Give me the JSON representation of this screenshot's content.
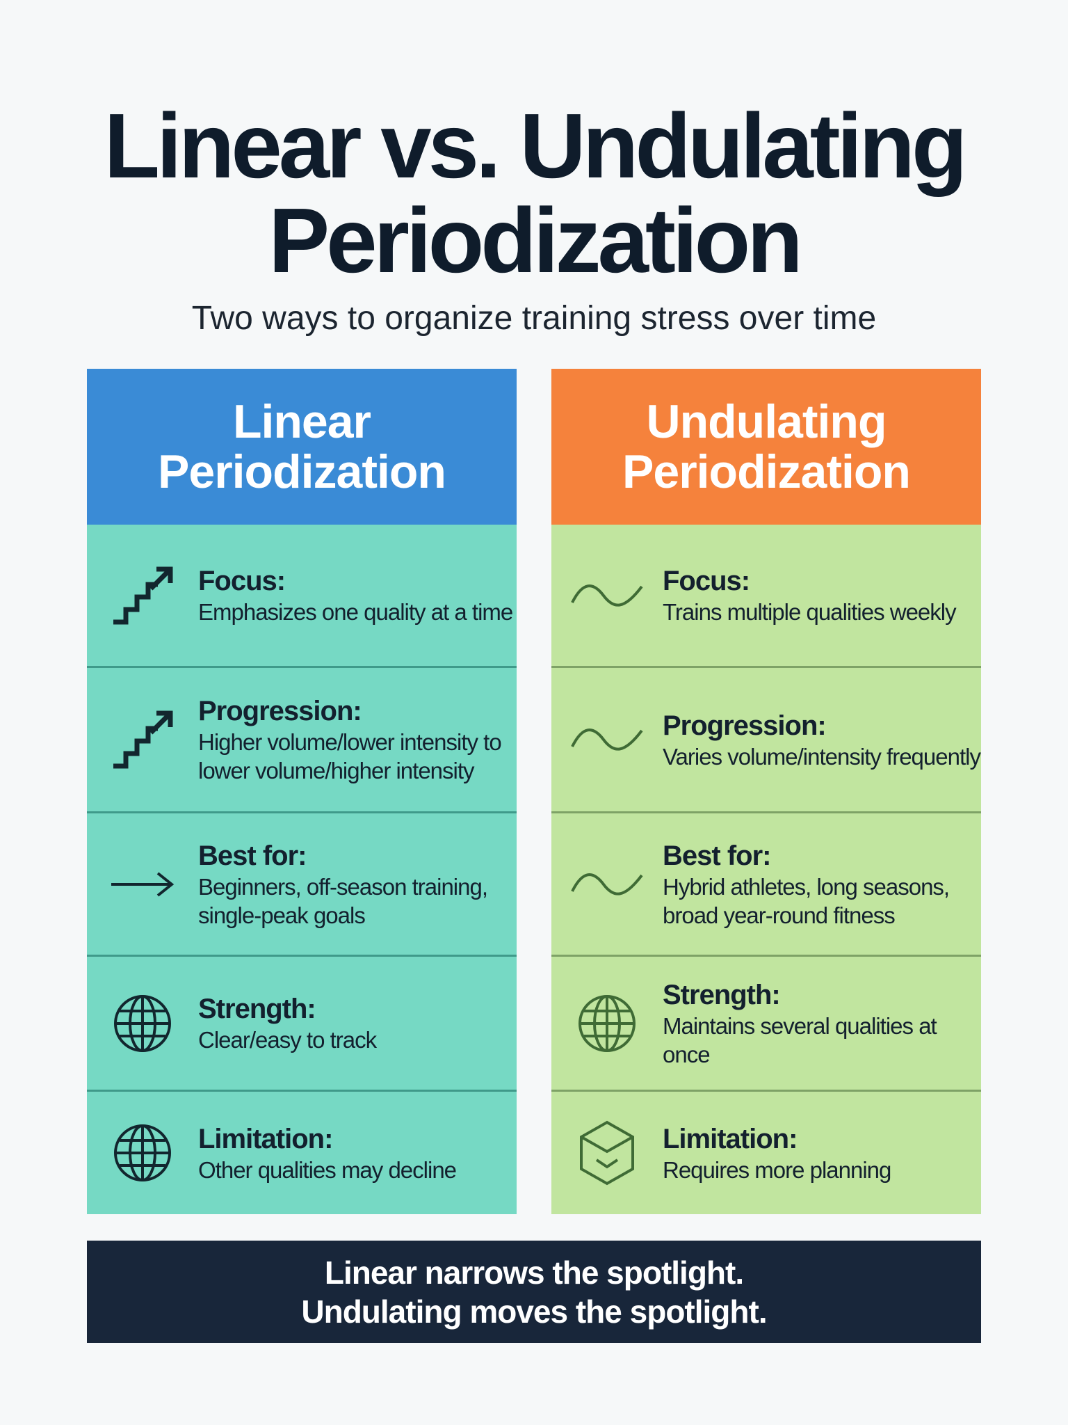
{
  "title": {
    "line1": "Linear vs. Undulating",
    "line2": "Periodization"
  },
  "subtitle": "Two ways to organize training stress over time",
  "colors": {
    "linear_header": "#3a8bd6",
    "linear_body": "#76d9c4",
    "undulating_header": "#f5823c",
    "undulating_body": "#c1e59f",
    "footer": "#18263a"
  },
  "linear": {
    "header": "Linear Periodization",
    "rows": [
      {
        "label": "Focus:",
        "text": "Emphasizes one quality at a time",
        "icon": "stairs-arrow-icon"
      },
      {
        "label": "Progression:",
        "text": "Higher volume/lower intensity to lower volume/higher intensity",
        "icon": "stairs-arrow-icon"
      },
      {
        "label": "Best for:",
        "text": "Beginners, off-season training, single-peak goals",
        "icon": "arrow-right-icon"
      },
      {
        "label": "Strength:",
        "text": "Clear/easy to track",
        "icon": "globe-icon"
      },
      {
        "label": "Limitation:",
        "text": "Other qualities may decline",
        "icon": "globe-icon"
      }
    ]
  },
  "undulating": {
    "header": "Undulating Periodization",
    "rows": [
      {
        "label": "Focus:",
        "text": "Trains multiple qualities weekly",
        "icon": "wave-icon"
      },
      {
        "label": "Progression:",
        "text": "Varies volume/intensity frequently",
        "icon": "wave-icon"
      },
      {
        "label": "Best for:",
        "text": "Hybrid athletes, long seasons, broad year-round fitness",
        "icon": "wave-icon"
      },
      {
        "label": "Strength:",
        "text": "Maintains several qualities at once",
        "icon": "globe-icon"
      },
      {
        "label": "Limitation:",
        "text": "Requires more planning",
        "icon": "box-icon"
      }
    ]
  },
  "footer": {
    "line1": "Linear narrows the spotlight.",
    "line2": "Undulating moves the spotlight."
  }
}
